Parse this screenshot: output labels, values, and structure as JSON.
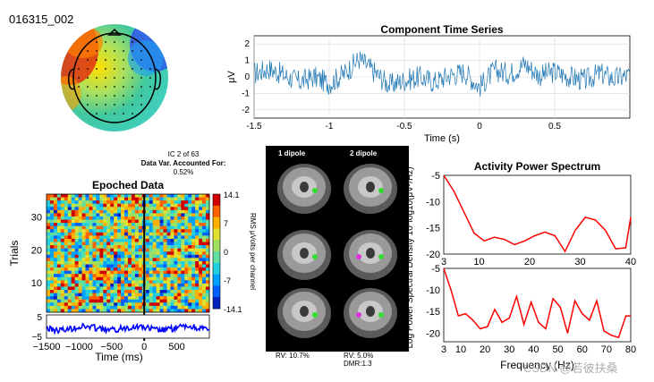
{
  "figure_id": "016315_002",
  "ic_info": {
    "line1": "IC 2 of 63",
    "line2": "Data Var. Accounted For:",
    "line3": "0.52%"
  },
  "colors": {
    "trace_blue": "#1f77b4",
    "spectrum_red": "#ff0000",
    "erp_blue": "#0000ff"
  },
  "dipole": {
    "col1": "1 dipole",
    "col2": "2 dipole",
    "rv1": "RV: 10.7%",
    "rv2": "RV: 5.0%",
    "dmr": "DMR:1.3"
  },
  "watermark": "CSDN @若彼扶桑",
  "chart_data": [
    {
      "type": "line",
      "title": "Component Time Series",
      "xlabel": "Time (s)",
      "ylabel": "μV",
      "xlim": [
        -1.5,
        1
      ],
      "ylim": [
        -2.5,
        2.5
      ],
      "xticks": [
        "-1.5",
        "-1",
        "-0.5",
        "0",
        "0.5"
      ],
      "yticks": [
        "2",
        "1",
        "0",
        "-1",
        "-2"
      ],
      "grid": true,
      "x": [
        -1.5,
        -1.4,
        -1.3,
        -1.2,
        -1.1,
        -1.0,
        -0.9,
        -0.8,
        -0.7,
        -0.6,
        -0.5,
        -0.4,
        -0.3,
        -0.2,
        -0.1,
        0.0,
        0.1,
        0.2,
        0.3,
        0.4,
        0.5,
        0.6,
        0.7,
        0.8,
        0.9,
        1.0
      ],
      "y": [
        0.2,
        0.5,
        0.1,
        -0.3,
        0.0,
        -0.4,
        0.2,
        1.1,
        0.3,
        -0.5,
        -0.2,
        0.0,
        -0.3,
        0.1,
        0.3,
        -0.6,
        0.4,
        0.2,
        0.8,
        0.1,
        0.3,
        0.0,
        -0.2,
        0.2,
        -0.1,
        0.1
      ]
    },
    {
      "type": "heatmap",
      "title": "Epoched Data",
      "xlabel": "Time (ms)",
      "ylabel": "Trials",
      "xlim": [
        -1500,
        1000
      ],
      "ylim": [
        1,
        37
      ],
      "xticks": [
        "−1500",
        "−1000",
        "−500",
        "0",
        "500"
      ],
      "yticks": [
        "30",
        "20",
        "10"
      ],
      "colorbar_label": "RMS μVolts per channel",
      "colorbar_ticks": [
        "14.1",
        "7",
        "0",
        "-7",
        "-14.1"
      ],
      "erp_yticks": [
        "5",
        "−5"
      ]
    },
    {
      "type": "line",
      "title": "Activity Power Spectrum",
      "xlabel": "Frequency (Hz)",
      "ylabel": "Log Power Spectral Density 10*log10(μV²/Hz)",
      "top": {
        "xlim": [
          3,
          40
        ],
        "ylim": [
          -20,
          -5
        ],
        "xticks": [
          "3",
          "10",
          "20",
          "30",
          "40"
        ],
        "yticks": [
          "-5",
          "-10",
          "-15",
          "-20"
        ],
        "x": [
          3,
          5,
          7,
          9,
          11,
          13,
          15,
          17,
          19,
          21,
          23,
          25,
          27,
          29,
          31,
          33,
          35,
          37,
          39,
          40
        ],
        "y": [
          -5,
          -8,
          -12,
          -16,
          -17.5,
          -16.8,
          -17.2,
          -18.2,
          -17.5,
          -16.5,
          -15.8,
          -16.5,
          -19.5,
          -15.5,
          -13,
          -13.5,
          -15.5,
          -19,
          -18.8,
          -13
        ]
      },
      "bottom": {
        "xlim": [
          3,
          80
        ],
        "ylim": [
          -22,
          -5
        ],
        "xticks": [
          "3",
          "10",
          "20",
          "30",
          "40",
          "50",
          "60",
          "70",
          "80"
        ],
        "yticks": [
          "-5",
          "-10",
          "-15",
          "-20"
        ],
        "x": [
          3,
          6,
          9,
          12,
          15,
          18,
          21,
          24,
          27,
          30,
          33,
          36,
          39,
          42,
          45,
          48,
          51,
          54,
          57,
          60,
          63,
          66,
          69,
          72,
          75,
          78,
          80
        ],
        "y": [
          -5,
          -10,
          -16,
          -15.5,
          -17,
          -19,
          -18.5,
          -14.5,
          -17.5,
          -16.5,
          -11.5,
          -18,
          -12.8,
          -17.5,
          -19,
          -12,
          -14,
          -20,
          -12.5,
          -15.5,
          -17,
          -12.5,
          -19.5,
          -20.5,
          -21,
          -16,
          -16
        ]
      }
    }
  ]
}
